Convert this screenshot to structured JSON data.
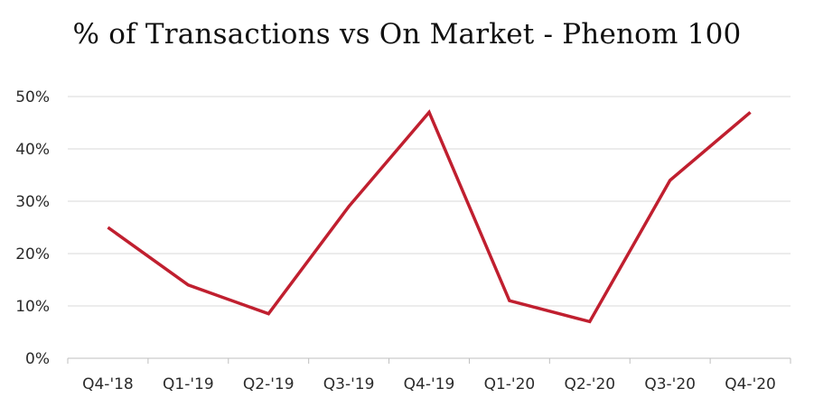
{
  "chart_data": {
    "type": "line",
    "title": "% of Transactions vs On Market - Phenom 100",
    "xlabel": "",
    "ylabel": "",
    "categories": [
      "Q4-'18",
      "Q1-'19",
      "Q2-'19",
      "Q3-'19",
      "Q4-'19",
      "Q1-'20",
      "Q2-'20",
      "Q3-'20",
      "Q4-'20"
    ],
    "series": [
      {
        "values": [
          25,
          14,
          8.5,
          29,
          47,
          11,
          7,
          34,
          47
        ]
      }
    ],
    "ylim": [
      0,
      50
    ],
    "y_ticks": [
      0,
      10,
      20,
      30,
      40,
      50
    ],
    "y_tick_labels": [
      "0%",
      "10%",
      "20%",
      "30%",
      "40%",
      "50%"
    ],
    "grid": true,
    "legend": "none",
    "colors": {
      "line": "#c01f2f",
      "grid": "#d9d9d9",
      "axis": "#bfbfbf"
    }
  }
}
